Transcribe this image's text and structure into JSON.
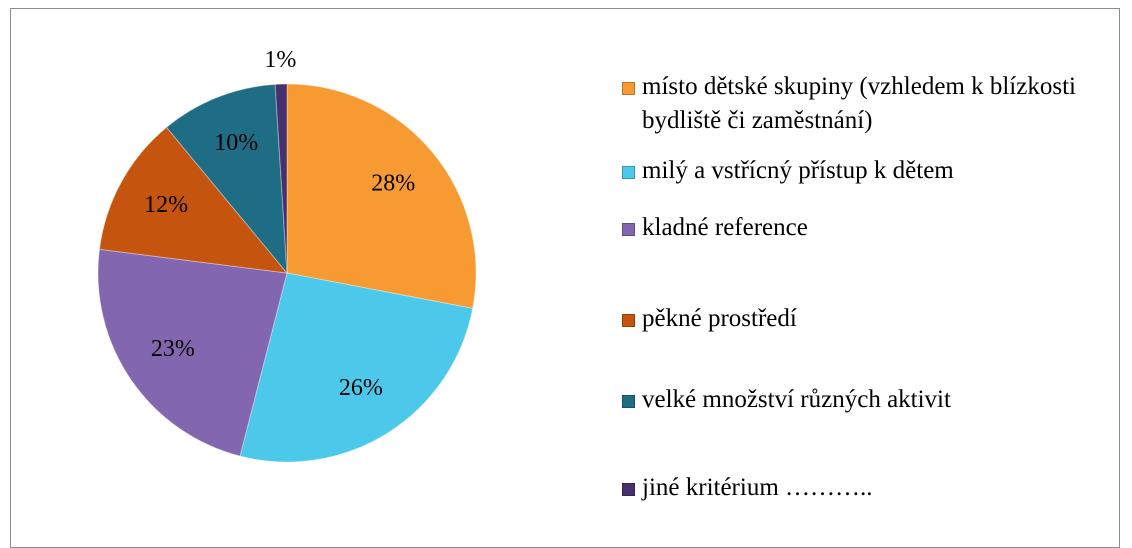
{
  "chart_data": {
    "type": "pie",
    "categories": [
      "místo dětské skupiny (vzhledem k blízkosti bydliště či zaměstnání)",
      "milý a vstřícný přístup k dětem",
      "kladné reference",
      "pěkné prostředí",
      "velké množství různých aktivit",
      "jiné kritérium ……….."
    ],
    "values": [
      28,
      26,
      23,
      12,
      10,
      1
    ],
    "value_labels": [
      "28%",
      "26%",
      "23%",
      "12%",
      "10%",
      "1%"
    ],
    "colors": [
      "#f79a32",
      "#4cc9ea",
      "#8366b0",
      "#c4540e",
      "#1f6d84",
      "#46316e"
    ],
    "legend": "right"
  }
}
